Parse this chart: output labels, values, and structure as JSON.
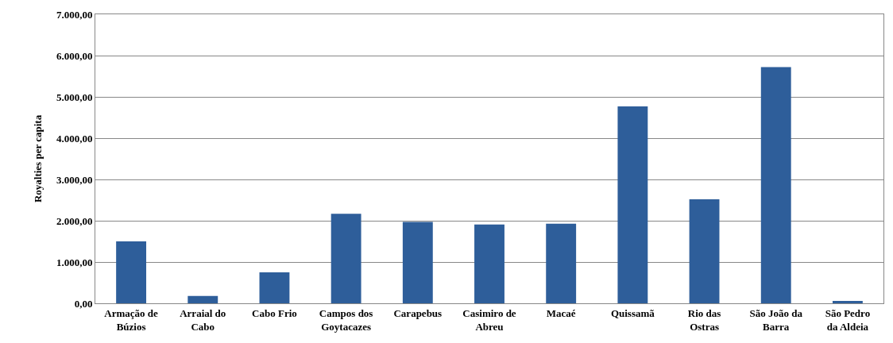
{
  "chart_data": {
    "type": "bar",
    "ylabel": "Royalties per capita",
    "categories": [
      "Armação de\nBúzios",
      "Arraial do\nCabo",
      "Cabo Frio",
      "Campos dos\nGoytacazes",
      "Carapebus",
      "Casimiro de\nAbreu",
      "Macaé",
      "Quissamã",
      "Rio das\nOstras",
      "São João da\nBarra",
      "São Pedro\nda Aldeia"
    ],
    "values": [
      1500,
      180,
      750,
      2170,
      1970,
      1910,
      1930,
      4770,
      2520,
      5720,
      60
    ],
    "color": "#2e5e9a",
    "ylim": [
      0,
      7000
    ],
    "yticks": [
      {
        "value": 0,
        "label": "0,00"
      },
      {
        "value": 1000,
        "label": "1.000,00"
      },
      {
        "value": 2000,
        "label": "2.000,00"
      },
      {
        "value": 3000,
        "label": "3.000,00"
      },
      {
        "value": 4000,
        "label": "4.000,00"
      },
      {
        "value": 5000,
        "label": "5.000,00"
      },
      {
        "value": 6000,
        "label": "6.000,00"
      },
      {
        "value": 7000,
        "label": "7.000,00"
      }
    ],
    "grid": "y"
  }
}
